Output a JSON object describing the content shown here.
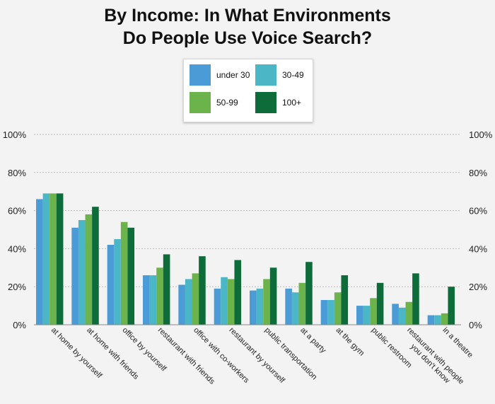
{
  "chart_data": {
    "type": "bar",
    "title": "By Income: In What Environments Do People Use Voice Search?",
    "title_lines": [
      "By Income: In What Environments",
      "Do People Use Voice Search?"
    ],
    "categories": [
      [
        "at home by yourself"
      ],
      [
        "at home with friends"
      ],
      [
        "office by yourself"
      ],
      [
        "restaurant with friends"
      ],
      [
        "office with co-workers"
      ],
      [
        "restaurant by yourself"
      ],
      [
        "public transportation"
      ],
      [
        "at a party"
      ],
      [
        "at the gym"
      ],
      [
        "public restroom"
      ],
      [
        "restaurant with people",
        "you don't know"
      ],
      [
        "in a theatre"
      ]
    ],
    "series": [
      {
        "name": "under 30",
        "color": "#4a9bd6",
        "values": [
          66,
          51,
          42,
          26,
          21,
          19,
          18,
          19,
          13,
          10,
          11,
          5
        ]
      },
      {
        "name": "30-49",
        "color": "#4bb7c6",
        "values": [
          69,
          55,
          45,
          26,
          24,
          25,
          19,
          17,
          13,
          10,
          9,
          5
        ]
      },
      {
        "name": "50-99",
        "color": "#6bb34a",
        "values": [
          69,
          58,
          54,
          30,
          27,
          24,
          24,
          22,
          17,
          14,
          12,
          6
        ]
      },
      {
        "name": "100+",
        "color": "#0e6b3a",
        "values": [
          69,
          62,
          51,
          37,
          36,
          34,
          30,
          33,
          26,
          22,
          27,
          20
        ]
      }
    ],
    "yticks": [
      "0%",
      "20%",
      "40%",
      "60%",
      "80%",
      "100%"
    ],
    "ylim": [
      0,
      100
    ],
    "xlabel": "",
    "ylabel": "",
    "legend_position": "top-center"
  }
}
